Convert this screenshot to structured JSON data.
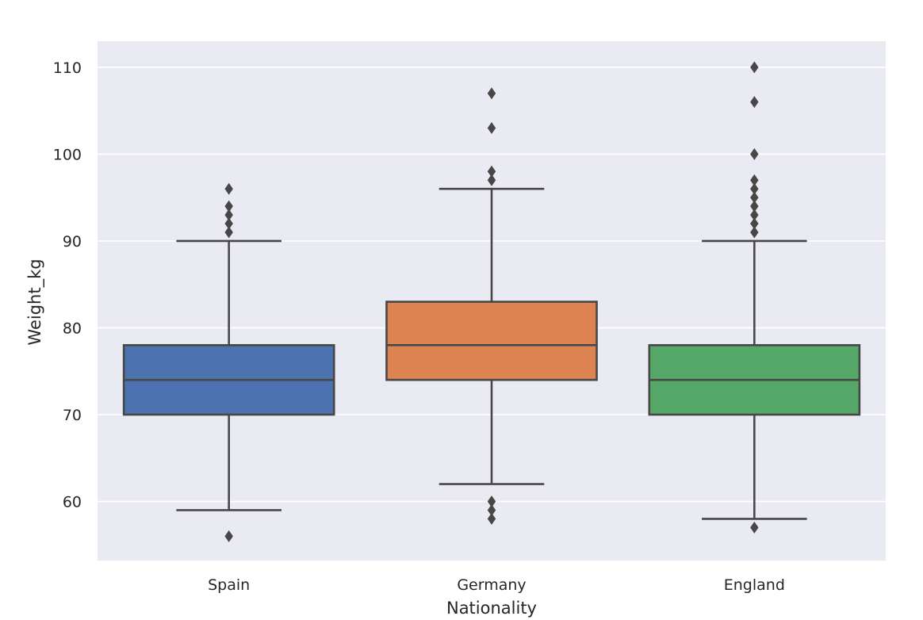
{
  "chart_data": {
    "type": "box",
    "title": "",
    "xlabel": "Nationality",
    "ylabel": "Weight_kg",
    "ylim": [
      53.2,
      113.0
    ],
    "yticks": [
      60,
      70,
      80,
      90,
      100,
      110
    ],
    "grid": true,
    "legend": "none",
    "categories": [
      "Spain",
      "Germany",
      "England"
    ],
    "colors": [
      "#4c72b0",
      "#dd8452",
      "#55a868"
    ],
    "background_color": "#eaeaf2",
    "grid_color": "#ffffff",
    "line_color": "#474747",
    "boxes": [
      {
        "category": "Spain",
        "whisker_low": 59,
        "q1": 70,
        "median": 74,
        "q3": 78,
        "whisker_high": 90,
        "outliers": [
          56,
          91,
          92,
          93,
          94,
          96
        ]
      },
      {
        "category": "Germany",
        "whisker_low": 62,
        "q1": 74,
        "median": 78,
        "q3": 83,
        "whisker_high": 96,
        "outliers": [
          58,
          59,
          60,
          97,
          98,
          103,
          107
        ]
      },
      {
        "category": "England",
        "whisker_low": 58,
        "q1": 70,
        "median": 74,
        "q3": 78,
        "whisker_high": 90,
        "outliers": [
          57,
          91,
          92,
          93,
          94,
          95,
          96,
          97,
          100,
          106,
          110
        ]
      }
    ]
  }
}
